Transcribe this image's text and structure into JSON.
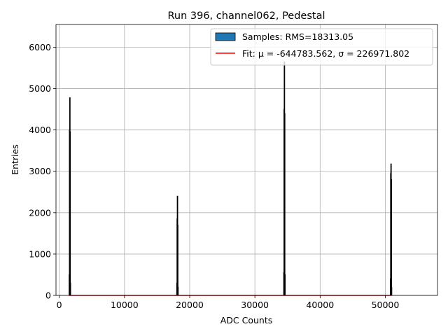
{
  "chart_data": {
    "type": "bar",
    "title": "Run 396, channel062, Pedestal",
    "xlabel": "ADC Counts",
    "ylabel": "Entries",
    "xlim": [
      -500,
      58000
    ],
    "ylim": [
      0,
      6550
    ],
    "xticks": [
      0,
      10000,
      20000,
      30000,
      40000,
      50000
    ],
    "yticks": [
      0,
      1000,
      2000,
      3000,
      4000,
      5000,
      6000
    ],
    "grid": true,
    "legend_position": "top-right",
    "legend": [
      {
        "label": "Samples: RMS=18313.05",
        "kind": "patch",
        "color": "#1f77b4"
      },
      {
        "label": "Fit: μ = -644783.562, σ = 226971.802",
        "kind": "line",
        "color": "#ff0000"
      }
    ],
    "series": [
      {
        "name": "Samples: RMS=18313.05",
        "kind": "histogram",
        "color": "#1f77b4",
        "edgecolor": "#000000",
        "bins": [
          {
            "x": 1500,
            "value": 500
          },
          {
            "x": 1540,
            "value": 4000
          },
          {
            "x": 1580,
            "value": 4780
          },
          {
            "x": 1620,
            "value": 3950
          },
          {
            "x": 1660,
            "value": 300
          },
          {
            "x": 18000,
            "value": 300
          },
          {
            "x": 18040,
            "value": 1850
          },
          {
            "x": 18080,
            "value": 2400
          },
          {
            "x": 18120,
            "value": 1700
          },
          {
            "x": 18160,
            "value": 200
          },
          {
            "x": 34400,
            "value": 550
          },
          {
            "x": 34440,
            "value": 4500
          },
          {
            "x": 34480,
            "value": 5650
          },
          {
            "x": 34520,
            "value": 4400
          },
          {
            "x": 34560,
            "value": 500
          },
          {
            "x": 50750,
            "value": 400
          },
          {
            "x": 50790,
            "value": 2950
          },
          {
            "x": 50830,
            "value": 3180
          },
          {
            "x": 50870,
            "value": 2800
          },
          {
            "x": 50910,
            "value": 200
          }
        ],
        "bin_width": 40
      },
      {
        "name": "Fit: μ = -644783.562, σ = 226971.802",
        "kind": "line",
        "color": "#ff0000",
        "x": [
          1500,
          50900
        ],
        "y": [
          0,
          0
        ]
      }
    ]
  }
}
